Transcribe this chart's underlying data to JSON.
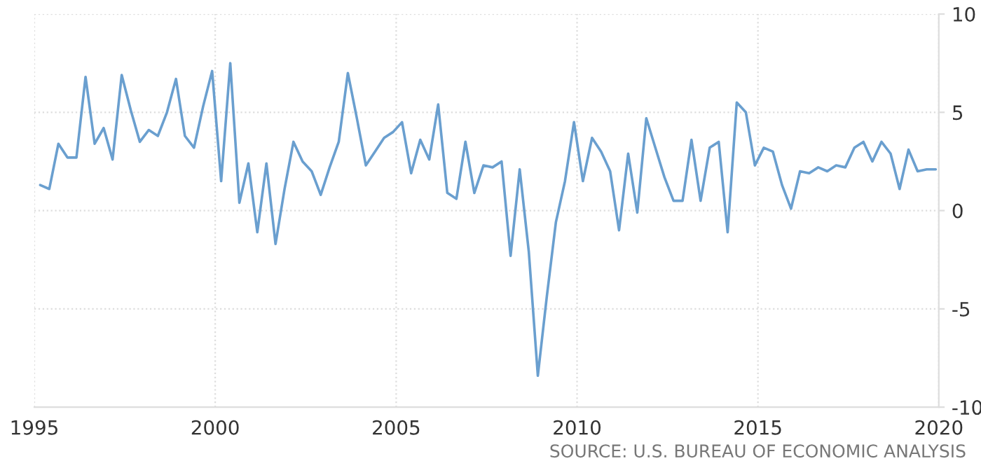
{
  "chart_data": {
    "type": "line",
    "x": [
      "1995-03",
      "1995-06",
      "1995-09",
      "1995-12",
      "1996-03",
      "1996-06",
      "1996-09",
      "1996-12",
      "1997-03",
      "1997-06",
      "1997-09",
      "1997-12",
      "1998-03",
      "1998-06",
      "1998-09",
      "1998-12",
      "1999-03",
      "1999-06",
      "1999-09",
      "1999-12",
      "2000-03",
      "2000-06",
      "2000-09",
      "2000-12",
      "2001-03",
      "2001-06",
      "2001-09",
      "2001-12",
      "2002-03",
      "2002-06",
      "2002-09",
      "2002-12",
      "2003-03",
      "2003-06",
      "2003-09",
      "2003-12",
      "2004-03",
      "2004-06",
      "2004-09",
      "2004-12",
      "2005-03",
      "2005-06",
      "2005-09",
      "2005-12",
      "2006-03",
      "2006-06",
      "2006-09",
      "2006-12",
      "2007-03",
      "2007-06",
      "2007-09",
      "2007-12",
      "2008-03",
      "2008-06",
      "2008-09",
      "2008-12",
      "2009-03",
      "2009-06",
      "2009-09",
      "2009-12",
      "2010-03",
      "2010-06",
      "2010-09",
      "2010-12",
      "2011-03",
      "2011-06",
      "2011-09",
      "2011-12",
      "2012-03",
      "2012-06",
      "2012-09",
      "2012-12",
      "2013-03",
      "2013-06",
      "2013-09",
      "2013-12",
      "2014-03",
      "2014-06",
      "2014-09",
      "2014-12",
      "2015-03",
      "2015-06",
      "2015-09",
      "2015-12",
      "2016-03",
      "2016-06",
      "2016-09",
      "2016-12",
      "2017-03",
      "2017-06",
      "2017-09",
      "2017-12",
      "2018-03",
      "2018-06",
      "2018-09",
      "2018-12",
      "2019-03",
      "2019-06",
      "2019-09",
      "2019-12"
    ],
    "series": [
      {
        "color": "#6a9fcf",
        "values": [
          1.3,
          1.1,
          3.4,
          2.7,
          2.7,
          6.8,
          3.4,
          4.2,
          2.6,
          6.9,
          5.1,
          3.5,
          4.1,
          3.8,
          5.0,
          6.7,
          3.8,
          3.2,
          5.3,
          7.1,
          1.5,
          7.5,
          0.4,
          2.4,
          -1.1,
          2.4,
          -1.7,
          1.1,
          3.5,
          2.5,
          2.0,
          0.8,
          2.2,
          3.5,
          7.0,
          4.7,
          2.3,
          3.0,
          3.7,
          4.0,
          4.5,
          1.9,
          3.6,
          2.6,
          5.4,
          0.9,
          0.6,
          3.5,
          0.9,
          2.3,
          2.2,
          2.5,
          -2.3,
          2.1,
          -2.1,
          -8.4,
          -4.4,
          -0.6,
          1.5,
          4.5,
          1.5,
          3.7,
          3.0,
          2.0,
          -1.0,
          2.9,
          -0.1,
          4.7,
          3.2,
          1.7,
          0.5,
          0.5,
          3.6,
          0.5,
          3.2,
          3.5,
          -1.1,
          5.5,
          5.0,
          2.3,
          3.2,
          3.0,
          1.3,
          0.1,
          2.0,
          1.9,
          2.2,
          2.0,
          2.3,
          2.2,
          3.2,
          3.5,
          2.5,
          3.5,
          2.9,
          1.1,
          3.1,
          2.0,
          2.1,
          2.1
        ]
      }
    ],
    "xlim": [
      "1995-01",
      "2020-01"
    ],
    "xticks": [
      {
        "value": "1995-01",
        "label": "1995"
      },
      {
        "value": "2000-01",
        "label": "2000"
      },
      {
        "value": "2005-01",
        "label": "2005"
      },
      {
        "value": "2010-01",
        "label": "2010"
      },
      {
        "value": "2015-01",
        "label": "2015"
      },
      {
        "value": "2020-01",
        "label": "2020"
      }
    ],
    "ylim": [
      -10,
      10
    ],
    "yticks": [
      -10,
      -5,
      0,
      5,
      10
    ],
    "grid": true,
    "line_style": "solid",
    "annotations": [
      "SOURCE: U.S. BUREAU OF ECONOMIC ANALYSIS"
    ]
  }
}
